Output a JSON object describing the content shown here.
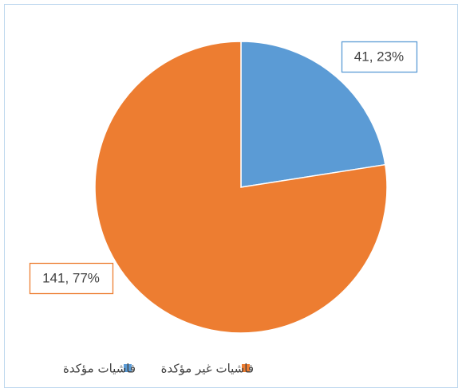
{
  "chart_data": {
    "type": "pie",
    "categories": [
      "فاشيات مؤكدة",
      "فاشيات غير مؤكدة"
    ],
    "values": [
      41,
      141
    ],
    "percents": [
      23,
      77
    ],
    "value_labels": [
      "41, 23%",
      "141, 77%"
    ],
    "colors": [
      "#5b9bd5",
      "#ed7d31"
    ],
    "legend": "bottom"
  }
}
